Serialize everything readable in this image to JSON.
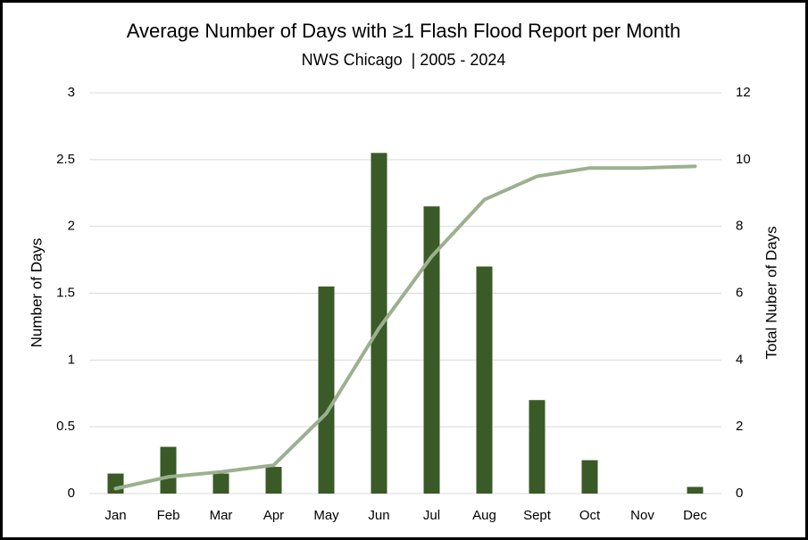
{
  "chart_data": {
    "type": "bar",
    "title": "Average Number of Days with ≥1 Flash Flood Report per Month",
    "subtitle": "NWS Chicago  | 2005 - 2024",
    "y_label": "Number of Days",
    "y2_label": "Total Nuber of Days",
    "categories": [
      "Jan",
      "Feb",
      "Mar",
      "Apr",
      "May",
      "Jun",
      "Jul",
      "Aug",
      "Sept",
      "Oct",
      "Nov",
      "Dec"
    ],
    "series": [
      {
        "type": "bar",
        "color": "#3a5a27",
        "values": [
          0.15,
          0.35,
          0.15,
          0.2,
          1.55,
          2.55,
          2.15,
          1.7,
          0.7,
          0.25,
          0,
          0.05
        ]
      },
      {
        "type": "line",
        "axis": "y2",
        "color": "#9bb08f",
        "values": [
          0.15,
          0.5,
          0.65,
          0.85,
          2.4,
          4.95,
          7.1,
          8.8,
          9.5,
          9.75,
          9.75,
          9.8
        ]
      }
    ],
    "ylim": [
      0,
      3
    ],
    "yticks": [
      0,
      0.5,
      1,
      1.5,
      2,
      2.5,
      3
    ],
    "y2lim": [
      0,
      12
    ],
    "y2ticks": [
      0,
      2,
      4,
      6,
      8,
      10,
      12
    ],
    "grid": true
  }
}
